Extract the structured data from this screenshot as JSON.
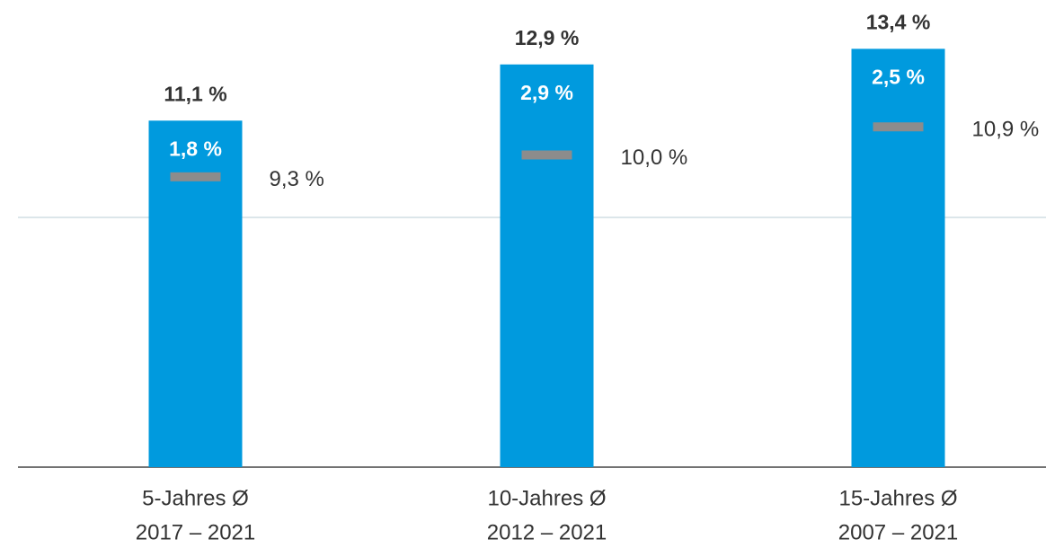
{
  "chart_data": {
    "type": "bar",
    "categories": [
      [
        "5-Jahres Ø",
        "2017 – 2021"
      ],
      [
        "10-Jahres Ø",
        "2012 – 2021"
      ],
      [
        "15-Jahres Ø",
        "2007 – 2021"
      ]
    ],
    "values": [
      11.1,
      12.9,
      13.4
    ],
    "value_labels": [
      "11,1 %",
      "12,9 %",
      "13,4 %"
    ],
    "color": "#009ade",
    "spread": {
      "values": [
        1.8,
        2.9,
        2.5
      ],
      "value_labels": [
        "1,8 %",
        "2,9 %",
        "2,5 %"
      ]
    },
    "markers": {
      "values": [
        9.3,
        10.0,
        10.9
      ],
      "value_labels": [
        "9,3 %",
        "10,0 %",
        "10,9 %"
      ],
      "color": "#8c8c8c"
    },
    "ylim": [
      0,
      15
    ],
    "yticks": [
      0,
      8
    ],
    "grid": true
  }
}
